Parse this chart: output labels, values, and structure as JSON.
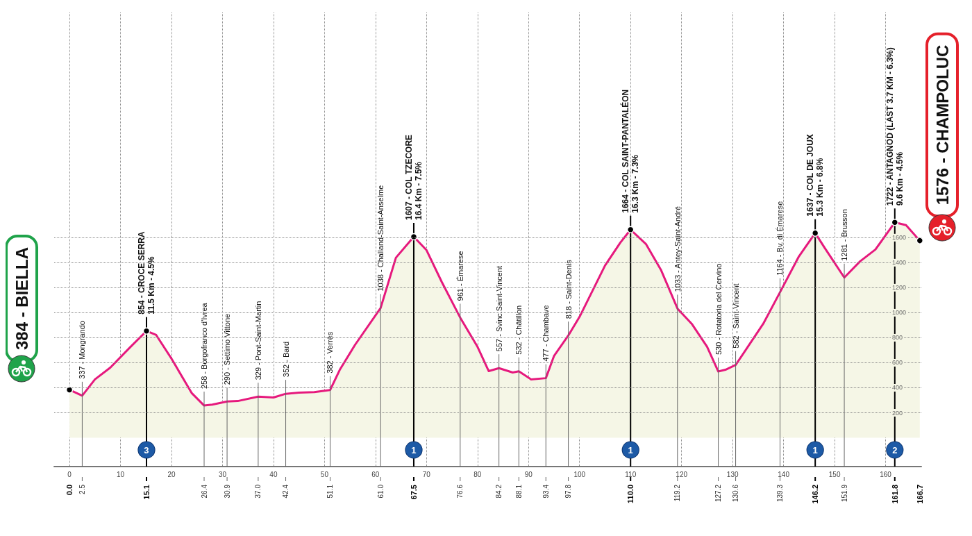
{
  "chart_data": {
    "type": "area",
    "x": [
      0,
      2.5,
      5,
      8,
      12,
      15.1,
      17,
      20,
      24,
      26.4,
      28,
      30.9,
      33,
      37.0,
      40,
      42.4,
      45,
      48,
      51.1,
      53,
      56,
      61.0,
      64,
      67.5,
      70,
      73,
      76.6,
      80,
      82.2,
      84.2,
      86.9,
      88.1,
      90.5,
      93.4,
      95,
      97.8,
      100,
      105,
      108,
      110.0,
      113,
      116,
      119.2,
      122,
      125,
      127.2,
      128.6,
      130.6,
      133,
      136,
      139.3,
      143,
      146.2,
      148,
      151.9,
      155,
      158,
      161.8,
      164,
      166.7
    ],
    "series": [
      {
        "color": "#e6197d",
        "values": [
          384,
          337,
          467,
          561,
          728,
          854,
          822,
          633,
          356,
          258,
          265,
          290,
          294,
          329,
          322,
          352,
          361,
          365,
          382,
          544,
          744,
          1038,
          1440,
          1607,
          1500,
          1245,
          961,
          727,
          533,
          557,
          522,
          532,
          467,
          477,
          655,
          818,
          967,
          1378,
          1561,
          1664,
          1550,
          1339,
          1033,
          911,
          728,
          530,
          544,
          582,
          728,
          911,
          1164,
          1450,
          1637,
          1522,
          1281,
          1411,
          1505,
          1722,
          1700,
          1576
        ]
      }
    ],
    "xlim": [
      -3,
      167
    ],
    "xticks": [
      0,
      10,
      20,
      30,
      40,
      50,
      60,
      70,
      80,
      90,
      100,
      110,
      120,
      130,
      140,
      150,
      160
    ],
    "x2lim": [
      -3,
      167
    ],
    "x2ticks": [
      {
        "value": 0,
        "label": "0.0"
      },
      2.5,
      15.1,
      26.4,
      30.9,
      {
        "value": 37,
        "label": "37.0"
      },
      42.4,
      51.1,
      {
        "value": 61,
        "label": "61.0"
      },
      67.5,
      76.6,
      84.2,
      88.1,
      93.4,
      97.8,
      {
        "value": 110,
        "label": "110.0"
      },
      119.2,
      127.2,
      130.6,
      139.3,
      146.2,
      151.9,
      161.8,
      166.7
    ],
    "ylim": [
      -230,
      3400
    ],
    "yticks": [
      200,
      400,
      600,
      800,
      1000,
      1200,
      1400,
      1600
    ],
    "grid": true,
    "marker": "none",
    "line_style": "solid",
    "annotations": [
      "384 - BIELLA",
      {
        "text": "337 - Mongrando",
        "x": 2.5,
        "y": 337
      },
      {
        "text": "854 - CROCE SERRA\n11.5 Km - 4.5%",
        "x": 15.1,
        "y": 854
      },
      {
        "text": "258 - Borgofranco d'Ivrea",
        "x": 26.4,
        "y": 258
      },
      {
        "text": "290 - Settimo Vittone",
        "x": 30.9,
        "y": 290
      },
      {
        "text": "329 - Pont-Saint-Martin",
        "x": 37.0,
        "y": 329
      },
      {
        "text": "352 - Bard",
        "x": 42.4,
        "y": 352
      },
      {
        "text": "382 - Verrès",
        "x": 51.1,
        "y": 382
      },
      {
        "text": "1038 - Challand-Saint-Anselme",
        "x": 61.0,
        "y": 1038
      },
      {
        "text": "1607 - COL TZECORE\n16.4 Km - 7.5%",
        "x": 67.5,
        "y": 1607
      },
      {
        "text": "961 - Émarese",
        "x": 76.6,
        "y": 961
      },
      {
        "text": "557 - Svinc.Saint-Vincent",
        "x": 84.2,
        "y": 557
      },
      {
        "text": "532 - Châtillon",
        "x": 88.1,
        "y": 532
      },
      {
        "text": "477 - Chambave",
        "x": 93.4,
        "y": 477
      },
      {
        "text": "818 - Saint-Denis",
        "x": 97.8,
        "y": 818
      },
      {
        "text": "1664 - COL SAINT-PANTALÉON\n16.3 Km - 7.3%",
        "x": 110.0,
        "y": 1664
      },
      {
        "text": "1033 - Antey-Saint-André",
        "x": 119.2,
        "y": 1033
      },
      {
        "text": "530 - Rotatoria del Cervino",
        "x": 127.2,
        "y": 530
      },
      {
        "text": "582 - Saint-Vincent",
        "x": 130.6,
        "y": 582
      },
      {
        "text": "1164 - Bv. di Émarese",
        "x": 139.3,
        "y": 1164
      },
      {
        "text": "1637 - COL DE JOUX\n15.3 Km - 6.8%",
        "x": 146.2,
        "y": 1637
      },
      {
        "text": "1281 - Brusson",
        "x": 151.9,
        "y": 1281
      },
      {
        "text": "1722 - ANTAGNOD (LAST 3.7 KM - 6.3%)\n9.6 Km - 4.5%",
        "x": 161.8,
        "y": 1722
      },
      {
        "text": "3",
        "x": 15.1
      },
      {
        "text": "1",
        "x": 67.5
      },
      {
        "text": "1",
        "x": 110.0
      },
      {
        "text": "1",
        "x": 146.2
      },
      {
        "text": "2",
        "x": 161.8
      },
      "1576 - CHAMPOLUC"
    ]
  }
}
